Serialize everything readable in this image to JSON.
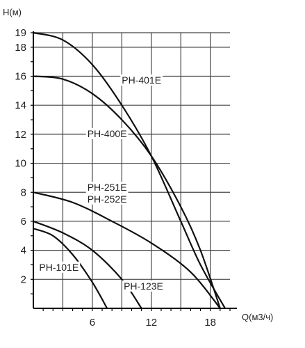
{
  "chart_data": {
    "type": "line",
    "ylabel": "H(м)",
    "xlabel": "Q(м3/ч)",
    "xlim": [
      0,
      20
    ],
    "ylim": [
      0,
      19
    ],
    "grid": true,
    "x_ticks": [
      6,
      12,
      18
    ],
    "y_ticks": [
      2,
      4,
      6,
      8,
      10,
      12,
      14,
      16,
      18,
      19
    ],
    "series": [
      {
        "name": "PH-401E",
        "x": [
          0,
          3,
          6,
          9,
          12,
          15,
          17,
          19.5
        ],
        "y": [
          19,
          18.5,
          16.8,
          14,
          10.5,
          6,
          3,
          0
        ]
      },
      {
        "name": "PH-400E",
        "x": [
          0,
          3,
          6,
          9,
          12,
          15,
          17,
          19
        ],
        "y": [
          16,
          15.8,
          14.8,
          13,
          10.5,
          7,
          4,
          0
        ]
      },
      {
        "name": "PH-251E\nPH-252E",
        "x": [
          0,
          4,
          8,
          12,
          16,
          19
        ],
        "y": [
          8,
          7.3,
          6,
          4.5,
          2.5,
          0
        ]
      },
      {
        "name": "PH-123E",
        "x": [
          0,
          3,
          6,
          9,
          11
        ],
        "y": [
          6,
          5.2,
          4,
          2,
          0
        ]
      },
      {
        "name": "PH-101E",
        "x": [
          0,
          2,
          4,
          6,
          7.5
        ],
        "y": [
          5.5,
          5,
          3.7,
          1.8,
          0
        ]
      }
    ],
    "curve_labels": [
      {
        "text": "PH-401E",
        "series": 0
      },
      {
        "text": "PH-400E",
        "series": 1
      },
      {
        "text": "PH-251E",
        "series": 2
      },
      {
        "text": "PH-252E",
        "series": 2
      },
      {
        "text": "PH-101E",
        "series": 4
      },
      {
        "text": "PH-123E",
        "series": 3
      }
    ]
  }
}
